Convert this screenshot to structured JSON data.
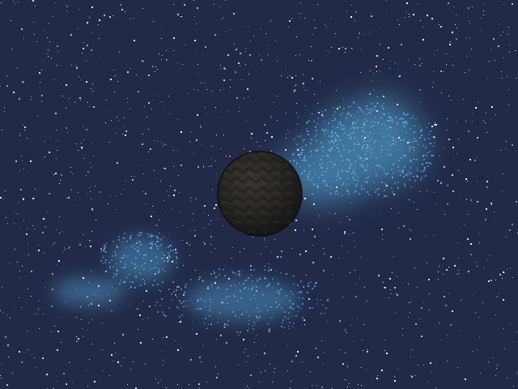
{
  "scene": {
    "background_color": "#222a48",
    "star_color": "#ffffff",
    "nebula_color": "#5ab4e6",
    "planet_color": "#2c2a27",
    "planet_shade_color": "#151515",
    "objects": [
      "starfield",
      "nebula-large",
      "nebula-small",
      "dark-planet"
    ]
  }
}
